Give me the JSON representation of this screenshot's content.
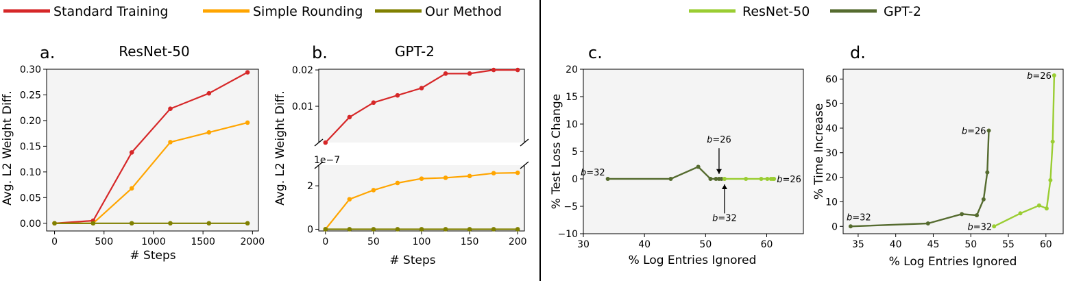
{
  "legends": {
    "left": [
      {
        "label": "Standard Training",
        "color": "#d62728"
      },
      {
        "label": "Simple Rounding",
        "color": "#ffa500"
      },
      {
        "label": "Our Method",
        "color": "#808000"
      }
    ],
    "right": [
      {
        "label": "ResNet-50",
        "color": "#9acd32"
      },
      {
        "label": "GPT-2",
        "color": "#556b2f"
      }
    ]
  },
  "chart_data": [
    {
      "id": "a",
      "type": "line",
      "letter": "a.",
      "title": "ResNet-50",
      "xlabel": "# Steps",
      "ylabel": "Avg. L2 Weight Diff.",
      "xlim": [
        -80,
        2060
      ],
      "ylim": [
        -0.015,
        0.3
      ],
      "xticks": [
        0,
        500,
        1000,
        1500,
        2000
      ],
      "xtick_labels": [
        "0",
        "500",
        "1000",
        "1500",
        "2000"
      ],
      "yticks": [
        0.0,
        0.05,
        0.1,
        0.15,
        0.2,
        0.25,
        0.3
      ],
      "ytick_labels": [
        "0.00",
        "0.05",
        "0.10",
        "0.15",
        "0.20",
        "0.25",
        "0.30"
      ],
      "grid": false,
      "x": [
        0,
        390,
        780,
        1170,
        1560,
        1950
      ],
      "series": [
        {
          "name": "Standard Training",
          "color": "#d62728",
          "values": [
            0.0,
            0.005,
            0.138,
            0.223,
            0.253,
            0.294
          ]
        },
        {
          "name": "Simple Rounding",
          "color": "#ffa500",
          "values": [
            0.0,
            0.0,
            0.068,
            0.158,
            0.177,
            0.196
          ]
        },
        {
          "name": "Our Method",
          "color": "#808000",
          "values": [
            0.0,
            0.0,
            0.0,
            0.0,
            0.0,
            0.0
          ]
        }
      ]
    },
    {
      "id": "b",
      "type": "line",
      "letter": "b.",
      "title": "GPT-2",
      "xlabel": "# Steps",
      "ylabel": "Avg. L2 Weight Diff.",
      "broken_axis": true,
      "offset_label": "1e−7",
      "xlim": [
        -7,
        207
      ],
      "xticks": [
        0,
        50,
        100,
        150,
        200
      ],
      "xtick_labels": [
        "0",
        "50",
        "100",
        "150",
        "200"
      ],
      "grid": false,
      "x": [
        0,
        25,
        50,
        75,
        100,
        125,
        150,
        175,
        200
      ],
      "upper": {
        "ylim": [
          0.0,
          0.0202
        ],
        "yticks": [
          0.01,
          0.02
        ],
        "ytick_labels": [
          "0.01",
          "0.02"
        ],
        "series": [
          {
            "name": "Standard Training",
            "color": "#d62728",
            "values": [
              0.0,
              0.007,
              0.011,
              0.013,
              0.015,
              0.019,
              0.019,
              0.02,
              0.02
            ]
          }
        ]
      },
      "lower": {
        "ylim": [
          -0.08,
          2.95
        ],
        "yticks": [
          0,
          2
        ],
        "ytick_labels": [
          "0",
          "2"
        ],
        "series": [
          {
            "name": "Simple Rounding",
            "color": "#ffa500",
            "values": [
              0.0,
              1.38,
              1.8,
              2.13,
              2.33,
              2.37,
              2.45,
              2.58,
              2.6
            ]
          },
          {
            "name": "Our Method",
            "color": "#808000",
            "values": [
              0.0,
              0.0,
              0.0,
              0.0,
              0.0,
              0.0,
              0.0,
              0.0,
              0.0
            ]
          }
        ]
      }
    },
    {
      "id": "c",
      "type": "line",
      "letter": "c.",
      "xlabel": "% Log Entries Ignored",
      "ylabel": "% Test Loss Change",
      "xlim": [
        30,
        66
      ],
      "ylim": [
        -10,
        20
      ],
      "xticks": [
        30,
        40,
        50,
        60
      ],
      "xtick_labels": [
        "30",
        "40",
        "50",
        "60"
      ],
      "yticks": [
        -10,
        -5,
        0,
        5,
        10,
        15,
        20
      ],
      "ytick_labels": [
        "−10",
        "−5",
        "0",
        "5",
        "10",
        "15",
        "20"
      ],
      "grid": false,
      "series": [
        {
          "name": "GPT-2",
          "color": "#556b2f",
          "x": [
            34,
            44.3,
            48.8,
            50.8,
            51.7,
            52.2,
            52.6
          ],
          "values": [
            0,
            0,
            2.2,
            0,
            0,
            0,
            0
          ]
        },
        {
          "name": "ResNet-50",
          "color": "#9acd32",
          "x": [
            53.1,
            56.6,
            59.1,
            60.1,
            60.7,
            61.0,
            61.2
          ],
          "values": [
            0,
            0,
            0,
            0,
            0,
            0,
            0
          ]
        }
      ],
      "annotations": [
        {
          "text": "b=32",
          "x": 34,
          "y": 0,
          "anchor": "end",
          "dx": -4,
          "dy": -5
        },
        {
          "text": "b=26",
          "x": 52.2,
          "y": 6.6,
          "anchor": "middle",
          "dx": 0,
          "dy": 0
        },
        {
          "text": "b=32",
          "x": 53.1,
          "y": -7.7,
          "anchor": "middle",
          "dx": 0,
          "dy": 0
        },
        {
          "text": "b=26",
          "x": 61.2,
          "y": 0,
          "anchor": "start",
          "dx": 4,
          "dy": 5
        }
      ],
      "arrows": [
        {
          "from": [
            52.2,
            5.6
          ],
          "to": [
            52.2,
            0.9
          ]
        },
        {
          "from": [
            53.1,
            -6.3
          ],
          "to": [
            53.1,
            -1.0
          ]
        }
      ]
    },
    {
      "id": "d",
      "type": "line",
      "letter": "d.",
      "xlabel": "% Log Entries Ignored",
      "ylabel": "% Time Increase",
      "xlim": [
        33,
        62.3
      ],
      "ylim": [
        -3,
        64
      ],
      "xticks": [
        35,
        40,
        45,
        50,
        55,
        60
      ],
      "xtick_labels": [
        "35",
        "40",
        "45",
        "50",
        "55",
        "60"
      ],
      "yticks": [
        0,
        10,
        20,
        30,
        40,
        50,
        60
      ],
      "ytick_labels": [
        "0",
        "10",
        "20",
        "30",
        "40",
        "50",
        "60"
      ],
      "grid": false,
      "series": [
        {
          "name": "GPT-2",
          "color": "#556b2f",
          "x": [
            34,
            44.3,
            48.8,
            50.8,
            51.7,
            52.2,
            52.4
          ],
          "values": [
            0,
            1.2,
            5,
            4.5,
            11,
            22,
            39
          ]
        },
        {
          "name": "ResNet-50",
          "color": "#9acd32",
          "x": [
            53.1,
            56.6,
            59.1,
            60.1,
            60.6,
            60.9,
            61.1
          ],
          "values": [
            0,
            5.3,
            8.5,
            7.3,
            18.8,
            34.5,
            61.5
          ]
        }
      ],
      "annotations": [
        {
          "text": "b=32",
          "x": 34,
          "y": 0,
          "anchor": "start",
          "dx": -6,
          "dy": -9
        },
        {
          "text": "b=26",
          "x": 52.4,
          "y": 39,
          "anchor": "end",
          "dx": -4,
          "dy": 5
        },
        {
          "text": "b=32",
          "x": 53.1,
          "y": 0,
          "anchor": "end",
          "dx": -3,
          "dy": 5
        },
        {
          "text": "b=26",
          "x": 61.1,
          "y": 61.5,
          "anchor": "end",
          "dx": -4,
          "dy": 5
        }
      ]
    }
  ]
}
